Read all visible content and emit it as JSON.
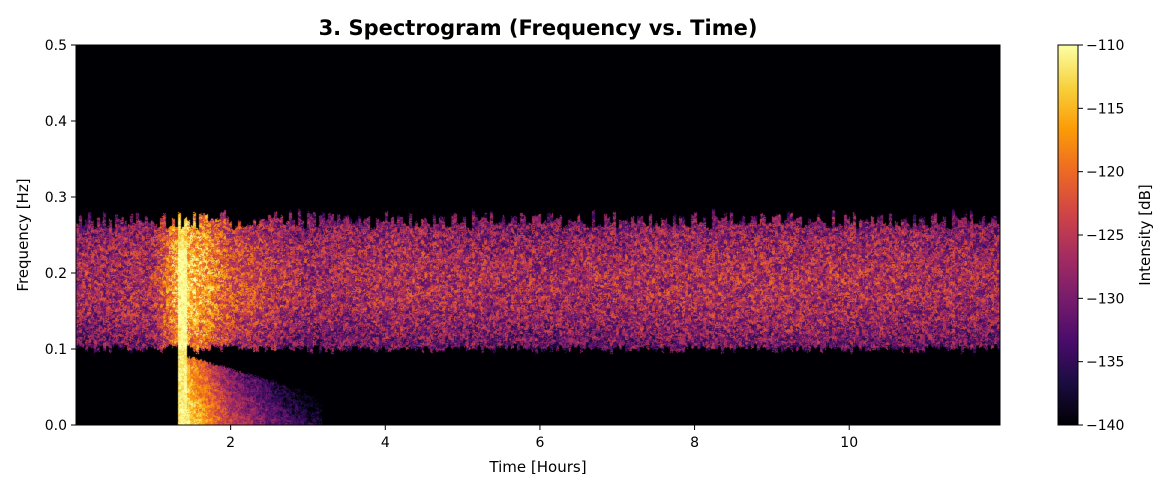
{
  "chart_data": {
    "type": "heatmap",
    "title": "3. Spectrogram (Frequency vs. Time)",
    "xlabel": "Time [Hours]",
    "ylabel": "Frequency [Hz]",
    "xlim": [
      0.0,
      11.95
    ],
    "ylim": [
      0.0,
      0.5
    ],
    "x_ticks": [
      2,
      4,
      6,
      8,
      10
    ],
    "y_ticks": [
      0.0,
      0.1,
      0.2,
      0.3,
      0.4,
      0.5
    ],
    "colorbar": {
      "label": "Intensity [dB]",
      "range": [
        -140,
        -110
      ],
      "ticks": [
        -110,
        -115,
        -120,
        -125,
        -130,
        -135,
        -140
      ],
      "colormap": "inferno",
      "colors": [
        "#000004",
        "#1b0c41",
        "#4a0c6b",
        "#781c6d",
        "#a52c60",
        "#cf4446",
        "#ed6925",
        "#fb9b06",
        "#f7d13d",
        "#fcffa4"
      ]
    },
    "grid": false,
    "legend": "none",
    "bands": [
      {
        "t_start": 0.0,
        "t_end": 11.95,
        "f_low": 0.1,
        "f_high": 0.27,
        "peak_f": 0.19,
        "intensity_db": [
          -132,
          -124
        ]
      },
      {
        "t_start": 1.3,
        "t_end": 3.2,
        "f_low": 0.0,
        "f_high": 0.25,
        "peak_time": 1.35,
        "intensity_db": [
          -135,
          -110
        ]
      }
    ],
    "time_points": [
      0.0,
      1.0,
      1.3,
      1.4,
      2.0,
      3.0,
      4.0,
      6.0,
      8.0,
      10.0,
      11.95
    ],
    "band_intensity_db": [
      -127,
      -126,
      -115,
      -112,
      -122,
      -127,
      -126,
      -127,
      -126,
      -126,
      -127
    ],
    "low_freq_intensity_db": [
      -140,
      -140,
      -112,
      -110,
      -124,
      -136,
      -140,
      -140,
      -140,
      -140,
      -140
    ]
  }
}
